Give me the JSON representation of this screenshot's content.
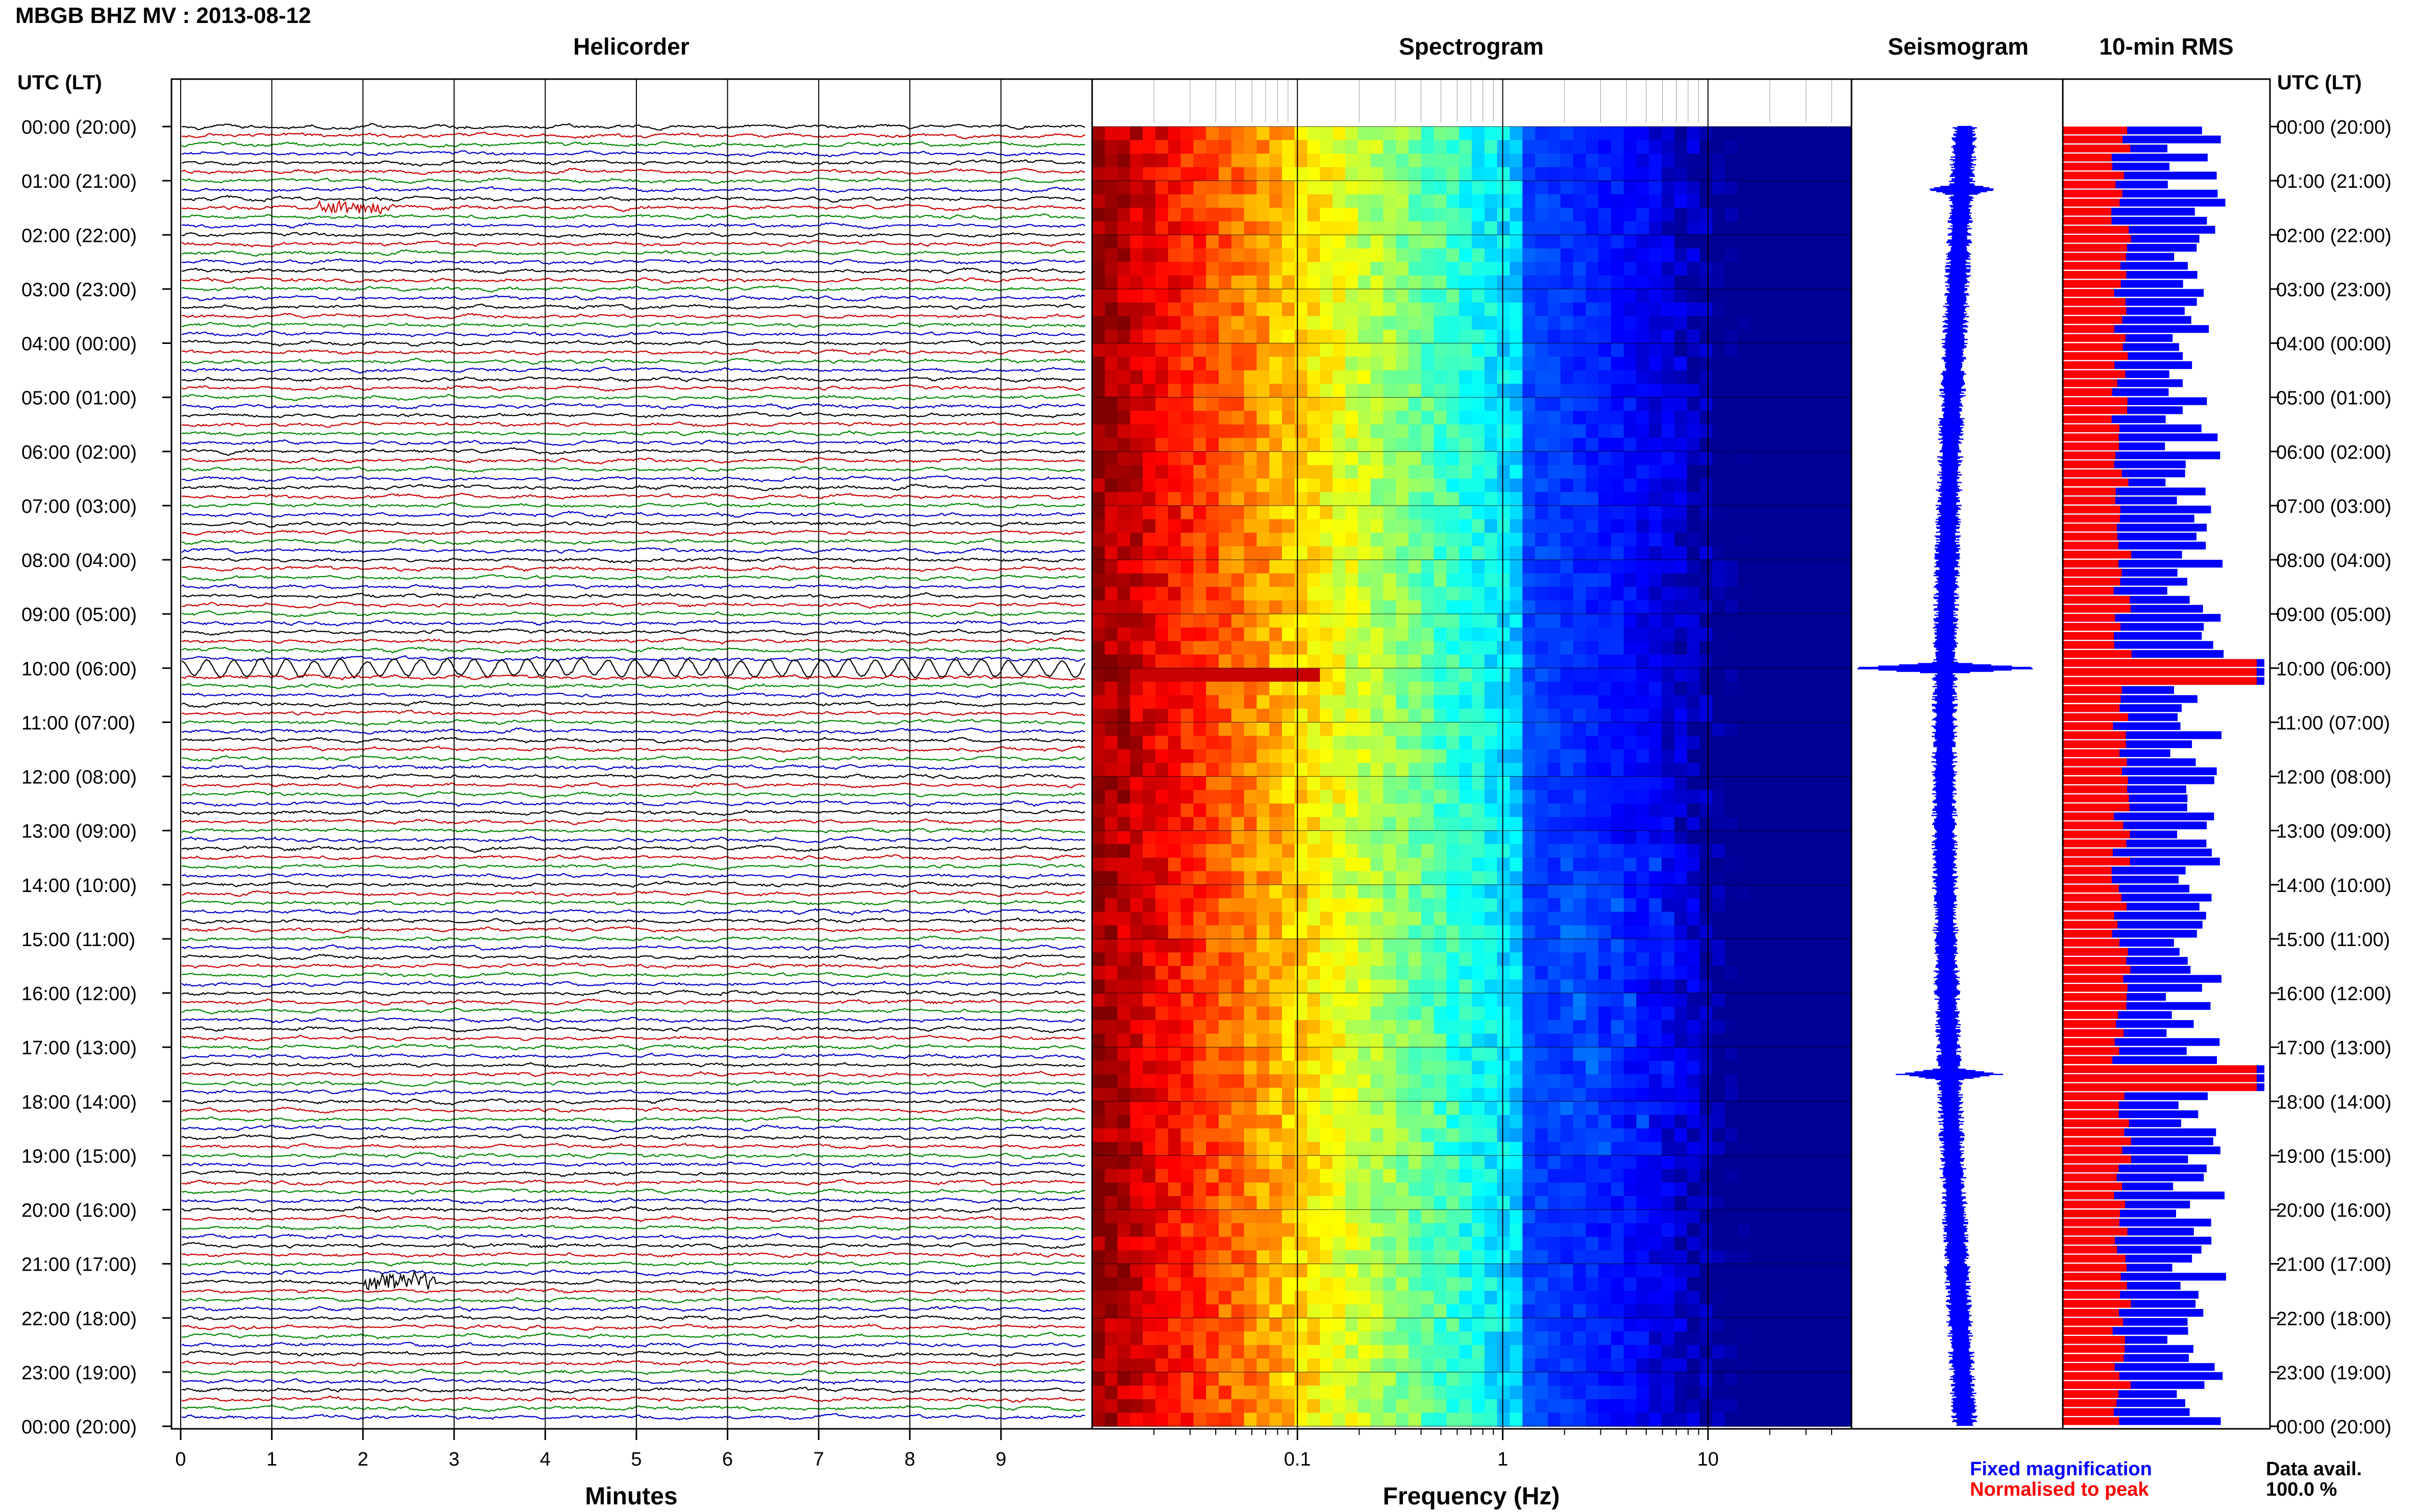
{
  "title": "MBGB BHZ MV : 2013-08-12",
  "panels": {
    "helicorder": "Helicorder",
    "spectrogram": "Spectrogram",
    "seismogram": "Seismogram",
    "rms": "10-min RMS"
  },
  "time_axis_label": "UTC (LT)",
  "legend": {
    "fixed": "Fixed magnification",
    "normalised": "Normalised to peak",
    "fixed_color": "#0000ff",
    "normalised_color": "#ff0000",
    "avail_label": "Data avail.",
    "avail_value": "100.0 %"
  },
  "chart_data": [
    {
      "type": "line",
      "panel": "helicorder",
      "xlabel": "Minutes",
      "x_ticks": [
        0,
        1,
        2,
        3,
        4,
        5,
        6,
        7,
        8,
        9
      ],
      "xlim": [
        0,
        10
      ],
      "y_ticks": [
        "00:00 (20:00)",
        "01:00 (21:00)",
        "02:00 (22:00)",
        "03:00 (23:00)",
        "04:00 (00:00)",
        "05:00 (01:00)",
        "06:00 (02:00)",
        "07:00 (03:00)",
        "08:00 (04:00)",
        "09:00 (05:00)",
        "10:00 (06:00)",
        "11:00 (07:00)",
        "12:00 (08:00)",
        "13:00 (09:00)",
        "14:00 (10:00)",
        "15:00 (11:00)",
        "16:00 (12:00)",
        "17:00 (13:00)",
        "18:00 (14:00)",
        "19:00 (15:00)",
        "20:00 (16:00)",
        "21:00 (17:00)",
        "22:00 (18:00)",
        "23:00 (19:00)",
        "00:00 (20:00)"
      ],
      "trace_colors": [
        "#000000",
        "#cc0000",
        "#008800",
        "#0000cc"
      ],
      "lines_per_hour": 6,
      "minutes_per_line": 10,
      "events": [
        {
          "time": "01:30",
          "minute": 2.0,
          "color": "#0000cc",
          "strength": 0.6
        },
        {
          "time": "10:00",
          "minute": 5.0,
          "color": "#008800",
          "strength": 1.0
        },
        {
          "time": "21:20",
          "minute": 2.5,
          "color": "#000000",
          "strength": 0.8
        }
      ]
    },
    {
      "type": "heatmap",
      "panel": "spectrogram",
      "xlabel": "Frequency (Hz)",
      "x_scale": "log",
      "x_ticks": [
        0.1,
        1,
        10
      ],
      "x_tick_labels": [
        "0.1",
        "1",
        "10"
      ],
      "xlim": [
        0.01,
        50
      ],
      "colormap": "jet",
      "note_text": ""
    },
    {
      "type": "line",
      "panel": "seismogram",
      "color": "#0000ff",
      "peaks": [
        {
          "time": "10:00",
          "strength": 1.0
        },
        {
          "time": "17:30",
          "strength": 0.5
        },
        {
          "time": "01:10",
          "strength": 0.3
        }
      ]
    },
    {
      "type": "bar",
      "panel": "10-min RMS",
      "orientation": "horizontal",
      "bins": 144,
      "series": [
        {
          "name": "Fixed magnification",
          "color": "#0000ff"
        },
        {
          "name": "Normalised to peak",
          "color": "#ff0000"
        }
      ],
      "peak_times": [
        "10:00",
        "17:30"
      ]
    }
  ]
}
